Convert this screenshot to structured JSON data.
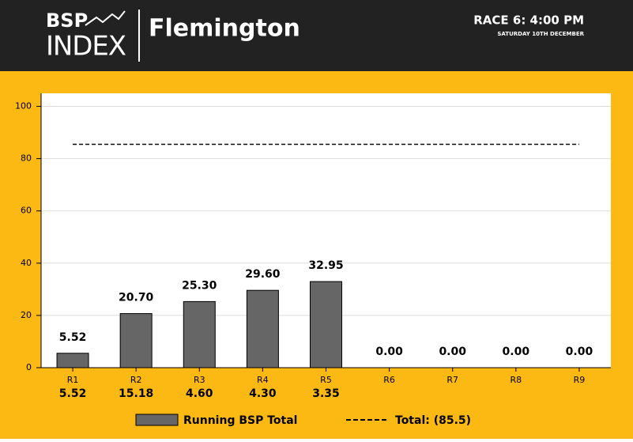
{
  "header": {
    "logo_top": "BSP",
    "logo_bottom": "INDEX",
    "venue": "Flemington",
    "race": "RACE 6: 4:00 PM",
    "date": "SATURDAY 10TH DECEMBER"
  },
  "chart_data": {
    "type": "bar",
    "categories": [
      "R1",
      "R2",
      "R3",
      "R4",
      "R5",
      "R6",
      "R7",
      "R8",
      "R9"
    ],
    "series": [
      {
        "name": "Running BSP Total",
        "color": "#666666",
        "values": [
          5.52,
          20.7,
          25.3,
          29.6,
          32.95,
          0,
          0,
          0,
          0
        ],
        "value_labels": [
          "5.52",
          "20.70",
          "25.30",
          "29.60",
          "32.95",
          "0.00",
          "0.00",
          "0.00",
          "0.00"
        ]
      }
    ],
    "race_bsp_labels": [
      "5.52",
      "15.18",
      "4.60",
      "4.30",
      "3.35",
      null,
      null,
      null,
      null
    ],
    "total": 85.5,
    "total_name": "Total: (85.5)",
    "ylim": [
      0,
      105
    ],
    "yticks": [
      0,
      20,
      40,
      60,
      80,
      100
    ],
    "grid": true
  }
}
